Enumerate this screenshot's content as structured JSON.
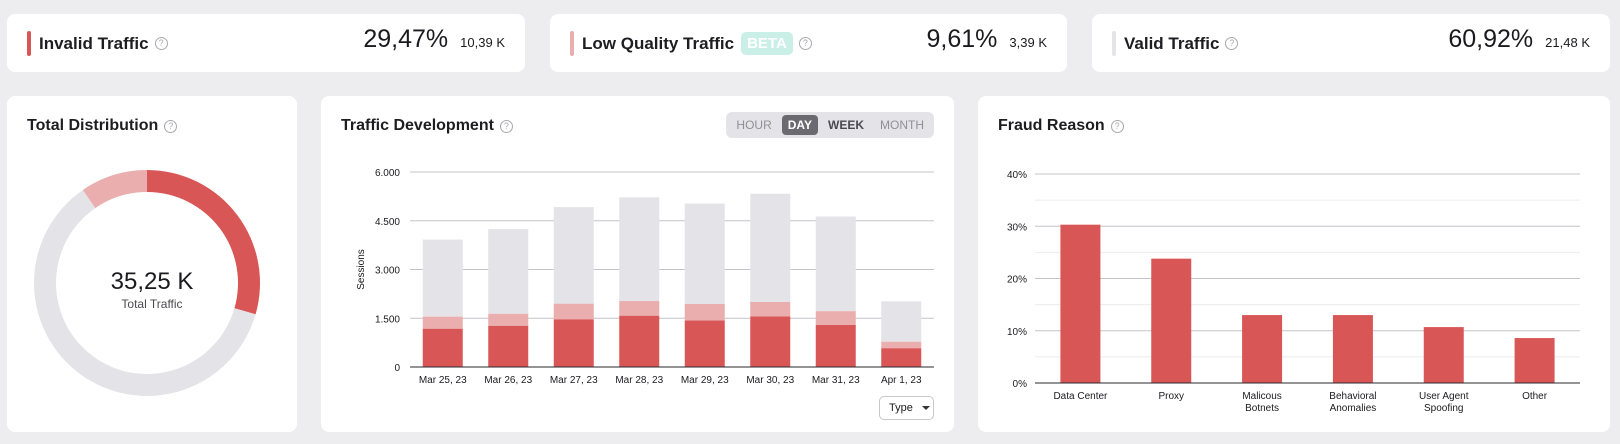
{
  "stats": [
    {
      "label": "Invalid Traffic",
      "badge": "",
      "percent": "29,47%",
      "absolute": "10,39 K",
      "color": "#d95656"
    },
    {
      "label": "Low Quality Traffic",
      "badge": "BETA",
      "percent": "9,61%",
      "absolute": "3,39 K",
      "color": "#eaaeae"
    },
    {
      "label": "Valid Traffic",
      "badge": "",
      "percent": "60,92%",
      "absolute": "21,48 K",
      "color": "#e3e3e8"
    }
  ],
  "help_glyph": "?",
  "distribution": {
    "title": "Total Distribution",
    "total_value": "35,25 K",
    "total_label": "Total Traffic",
    "chart_data": {
      "type": "pie",
      "slices": [
        {
          "name": "Invalid Traffic",
          "value": 29.47,
          "color": "#d95656"
        },
        {
          "name": "Valid Traffic",
          "value": 60.92,
          "color": "#e3e3e8"
        },
        {
          "name": "Low Quality Traffic",
          "value": 9.61,
          "color": "#eaaeae"
        }
      ]
    }
  },
  "development": {
    "title": "Traffic Development",
    "granularity": [
      "HOUR",
      "DAY",
      "WEEK",
      "MONTH"
    ],
    "selected_granularity": "DAY",
    "type_select": "Type",
    "chart_data": {
      "type": "bar",
      "stacked": true,
      "categories": [
        "Mar 25, 23",
        "Mar 26, 23",
        "Mar 27, 23",
        "Mar 28, 23",
        "Mar 29, 23",
        "Mar 30, 23",
        "Mar 31, 23",
        "Apr 1, 23"
      ],
      "series": [
        {
          "values": [
            1180,
            1270,
            1470,
            1580,
            1430,
            1560,
            1300,
            580
          ],
          "color": "#d95656"
        },
        {
          "values": [
            370,
            370,
            480,
            450,
            510,
            440,
            420,
            200
          ],
          "color": "#eaaeae"
        },
        {
          "values": [
            2370,
            2600,
            2970,
            3190,
            3090,
            3330,
            2910,
            1240
          ],
          "color": "#e3e3e8"
        }
      ],
      "ylabel": "Sessions",
      "ylim": [
        0,
        6000
      ],
      "yticks": [
        0,
        1500,
        3000,
        4500,
        6000
      ],
      "ytick_labels": [
        "0",
        "1.500",
        "3.000",
        "4.500",
        "6.000"
      ],
      "grid": true
    }
  },
  "fraud": {
    "title": "Fraud Reason",
    "chart_data": {
      "type": "bar",
      "categories": [
        [
          "Data Center"
        ],
        [
          "Proxy"
        ],
        [
          "Malicous",
          "Botnets"
        ],
        [
          "Behavioral",
          "Anomalies"
        ],
        [
          "User Agent",
          "Spoofing"
        ],
        [
          "Other"
        ]
      ],
      "values": [
        30.3,
        23.8,
        13.0,
        13.0,
        10.7,
        8.6
      ],
      "color": "#d95656",
      "ylim": [
        0,
        40
      ],
      "yticks": [
        0,
        10,
        20,
        30,
        40
      ],
      "ytick_labels": [
        "0%",
        "10%",
        "20%",
        "30%",
        "40%"
      ],
      "grid": true
    }
  }
}
